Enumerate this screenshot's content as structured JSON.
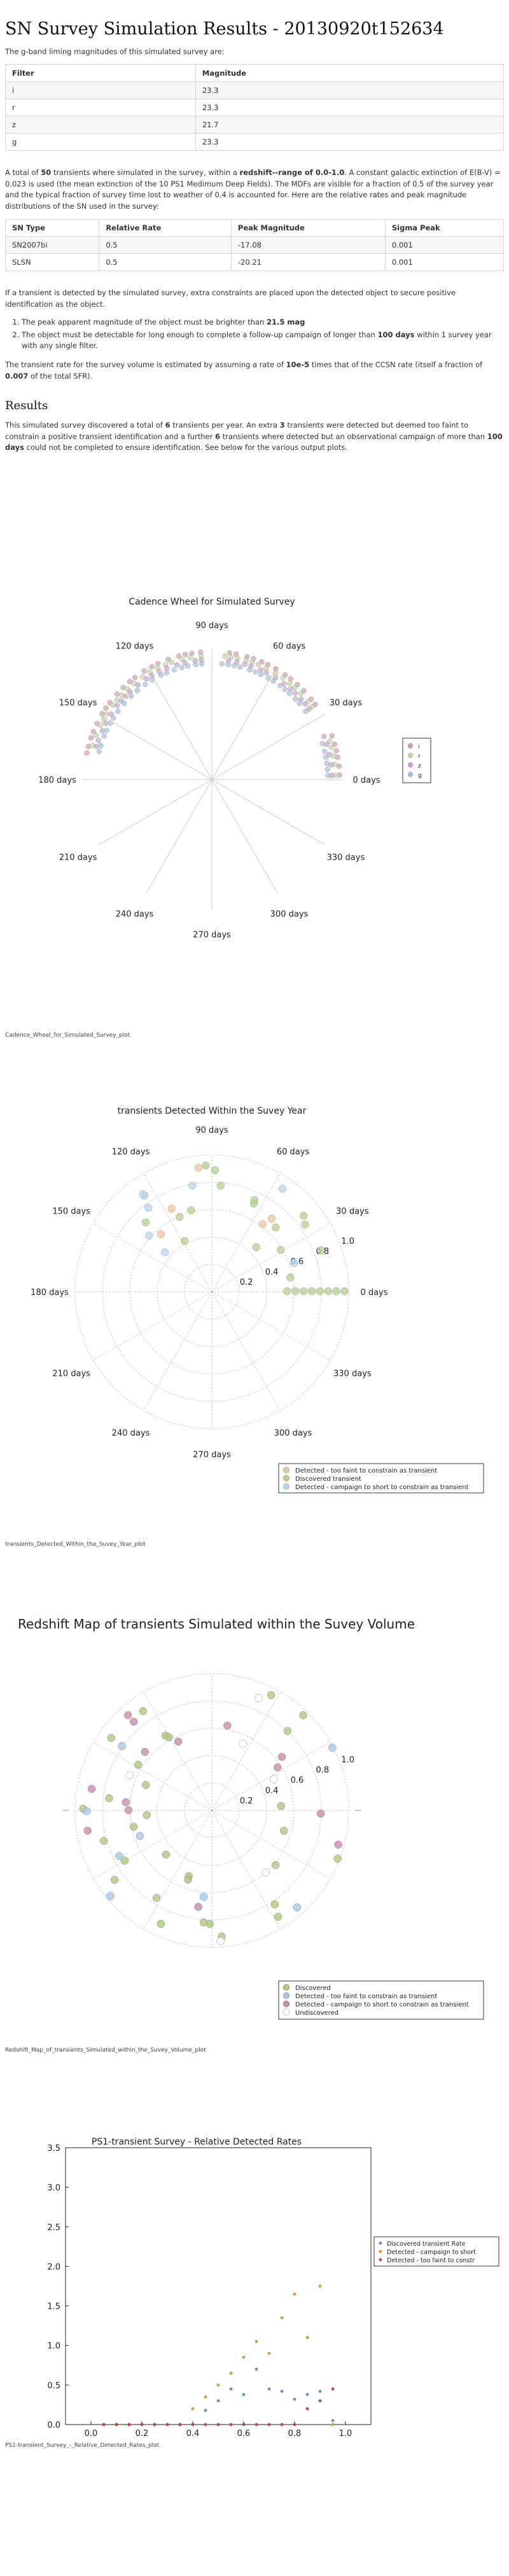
{
  "title": "SN Survey Simulation Results - 20130920t152634",
  "intro": "The g-band liming magnitudes of this simulated survey are:",
  "limits_table": {
    "headers": [
      "Filter",
      "Magnitude"
    ],
    "rows": [
      [
        "i",
        "23.3"
      ],
      [
        "r",
        "23.3"
      ],
      [
        "z",
        "21.7"
      ],
      [
        "g",
        "23.3"
      ]
    ]
  },
  "summary": {
    "p1": "A total of",
    "n_transients": "50",
    "p2": "transients where simulated in the survey, within a",
    "z_range_label": "redshift--range of 0.0-1.0",
    "p3": ". A constant galactic extinction of E(B-V) = 0.023 is used (the mean extinction of the 10 PS1 Medimum Deep Fields). The MDFs are visible for a fraction of 0.5 of the survey year and the typical fraction of survey time lost to weather of 0.4 is accounted for. Here are the relative rates and peak magnitude distributions of the SN used in the survey:"
  },
  "sn_table": {
    "headers": [
      "SN Type",
      "Relative Rate",
      "Peak Magnitude",
      "Sigma Peak"
    ],
    "rows": [
      [
        "SN2007bi",
        "0.5",
        "-17.08",
        "0.001"
      ],
      [
        "SLSN",
        "0.5",
        "-20.21",
        "0.001"
      ]
    ]
  },
  "criteria": {
    "intro": "If a transient is detected by the simulated survey, extra constraints are placed upon the detected object to secure positive identification as the object.",
    "item1_a": "The peak apparent magnitude of the object must be brighter than",
    "item1_b": "21.5 mag",
    "item2_a": "The object must be detectable for long enough to complete a follow-up campaign of longer than",
    "item2_b": "100 days",
    "item2_c": "within 1 survey year with any single filter.",
    "rate_a": "The transient rate for the survey volume is estimated by assuming a rate of",
    "rate_b": "10e-5",
    "rate_c": "times that of the CCSN rate (itself a fraction of",
    "rate_d": "0.007",
    "rate_e": "of the total SFR)."
  },
  "results": {
    "heading": "Results",
    "p_a": "This simulated survey discovered a total of",
    "p_b": "6",
    "p_c": "transients per year. An extra",
    "p_d": "3",
    "p_e": "transients were detected but deemed too faint to constrain a positive transient identification and a further",
    "p_f": "6",
    "p_g": "transients where detected but an observational campaign of more than",
    "p_h": "100 days",
    "p_i": "could not be completed to ensure identification. See below for the various output plots."
  },
  "cadence_wheel": {
    "title": "Cadence Wheel for Simulated Survey",
    "caption": "Cadence_Wheel_for_Simulated_Survey_plot",
    "angle_labels": [
      "0 days",
      "30 days",
      "60 days",
      "90 days",
      "120 days",
      "150 days",
      "180 days",
      "210 days",
      "240 days",
      "270 days",
      "300 days",
      "330 days"
    ],
    "legend": [
      "i",
      "r",
      "z",
      "g"
    ],
    "colors": [
      "#c9a2a8",
      "#c8d4a4",
      "#c8a4d0",
      "#a8c0d8"
    ]
  },
  "detected_year": {
    "title": "transients Detected Within the Suvey Year",
    "caption": "transients_Detected_Within_the_Suvey_Year_plot",
    "angle_labels": [
      "0 days",
      "30 days",
      "60 days",
      "90 days",
      "120 days",
      "150 days",
      "180 days",
      "210 days",
      "240 days",
      "270 days",
      "300 days",
      "330 days"
    ],
    "radial_labels": [
      "0.2",
      "0.4",
      "0.6",
      "0.8",
      "1.0"
    ],
    "legend": [
      "Detected - too faint to constrain as transient",
      "Discovered transient",
      "Detected - campaign to short to constrain as transient"
    ],
    "colors": [
      "#e8c7a0",
      "#b8cc90",
      "#b8d4ea"
    ]
  },
  "redshift_map": {
    "title": "Redshift Map of transients Simulated within the Suvey Volume",
    "caption": "Redshift_Map_of_transients_Simulated_within_the_Suvey_Volume_plot",
    "radial_labels": [
      "0.2",
      "0.4",
      "0.6",
      "0.8",
      "1.0"
    ],
    "legend": [
      "Discovered",
      "Detected - too faint to constrain as transient",
      "Detected - campaign to short to constrain as transient",
      "Undiscovered"
    ],
    "colors": [
      "#b2c67e",
      "#a8c8e2",
      "#c88ca8",
      "#ffffff"
    ]
  },
  "chart_data": {
    "type": "scatter",
    "title": "PS1-transient Survey - Relative Detected Rates",
    "caption": "PS1-transient_Survey_-_Relative_Detected_Rates_plot",
    "xlim": [
      -0.1,
      1.1
    ],
    "ylim": [
      0,
      3.5
    ],
    "xticks": [
      "0.0",
      "0.2",
      "0.4",
      "0.6",
      "0.8",
      "1.0"
    ],
    "yticks": [
      "0.0",
      "0.5",
      "1.0",
      "1.5",
      "2.0",
      "2.5",
      "3.0",
      "3.5"
    ],
    "series": [
      {
        "name": "Discovered transient Rate",
        "color": "#6a8fc0",
        "x": [
          0.05,
          0.1,
          0.15,
          0.2,
          0.25,
          0.3,
          0.35,
          0.4,
          0.45,
          0.5,
          0.55,
          0.6,
          0.65,
          0.7,
          0.75,
          0.8,
          0.85,
          0.9,
          0.95
        ],
        "y": [
          0,
          0,
          0,
          0,
          0,
          0,
          0,
          0,
          0.18,
          0.3,
          0.45,
          0.38,
          0.7,
          0.45,
          0.42,
          0.32,
          0.38,
          0.42,
          0.05
        ]
      },
      {
        "name": "Detected - campaign to short",
        "color": "#c8a040",
        "x": [
          0.05,
          0.1,
          0.15,
          0.2,
          0.25,
          0.3,
          0.35,
          0.4,
          0.45,
          0.5,
          0.55,
          0.6,
          0.65,
          0.7,
          0.75,
          0.8,
          0.85,
          0.9,
          0.95
        ],
        "y": [
          0,
          0,
          0,
          0,
          0,
          0,
          0,
          0.2,
          0.35,
          0.5,
          0.65,
          0.85,
          1.05,
          0.9,
          1.35,
          1.65,
          1.1,
          1.75,
          0
        ]
      },
      {
        "name": "Detected - too faint to constr",
        "color": "#c04050",
        "x": [
          0.05,
          0.1,
          0.15,
          0.2,
          0.25,
          0.3,
          0.35,
          0.4,
          0.45,
          0.5,
          0.55,
          0.6,
          0.65,
          0.7,
          0.75,
          0.8,
          0.85,
          0.9,
          0.95
        ],
        "y": [
          0,
          0,
          0,
          0,
          0,
          0,
          0,
          0,
          0,
          0,
          0,
          0,
          0,
          0,
          0,
          0,
          0.2,
          0.3,
          0.45
        ]
      }
    ]
  }
}
